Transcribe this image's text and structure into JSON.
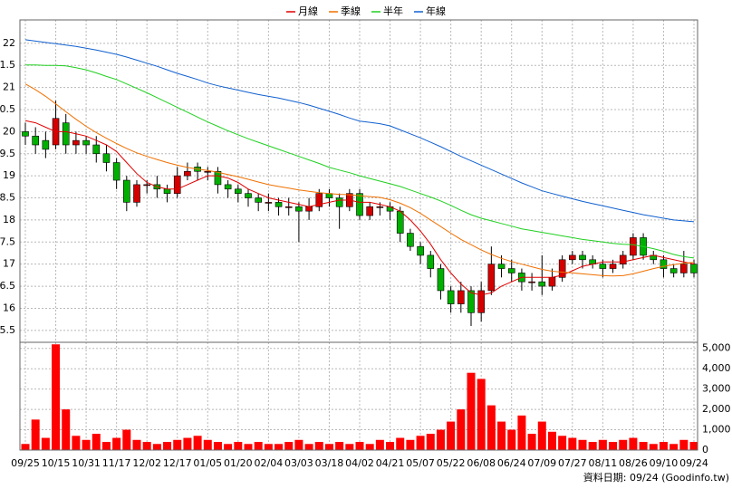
{
  "chart_data": {
    "type": "candlestick",
    "source": "資料日期: 09/24 (Goodinfo.tw)",
    "categories": [
      "09/25",
      null,
      null,
      "10/15",
      null,
      null,
      "10/31",
      null,
      null,
      "11/17",
      null,
      null,
      "12/02",
      null,
      null,
      "12/17",
      null,
      null,
      "01/05",
      null,
      null,
      "01/20",
      null,
      null,
      "02/04",
      null,
      null,
      "03/03",
      null,
      null,
      "03/18",
      null,
      null,
      "04/02",
      null,
      null,
      "04/21",
      null,
      null,
      "05/07",
      null,
      null,
      "05/22",
      null,
      null,
      "06/08",
      null,
      null,
      "06/24",
      null,
      null,
      "07/09",
      null,
      null,
      "07/27",
      null,
      null,
      "08/11",
      null,
      null,
      "08/26",
      null,
      null,
      "09/10",
      null,
      null,
      "09/24"
    ],
    "open": [
      20.0,
      19.9,
      19.8,
      19.7,
      20.2,
      19.7,
      19.8,
      19.7,
      19.5,
      19.3,
      18.9,
      18.4,
      18.8,
      18.8,
      18.7,
      18.6,
      19.0,
      19.2,
      19.1,
      19.1,
      18.8,
      18.7,
      18.6,
      18.5,
      18.4,
      18.4,
      18.3,
      18.3,
      18.2,
      18.3,
      18.6,
      18.5,
      18.3,
      18.6,
      18.1,
      18.3,
      18.3,
      18.2,
      17.7,
      17.4,
      17.2,
      16.9,
      16.4,
      16.1,
      16.4,
      15.9,
      16.4,
      17.0,
      16.9,
      16.8,
      16.6,
      16.6,
      16.5,
      16.7,
      17.1,
      17.2,
      17.1,
      17.0,
      16.9,
      17.0,
      17.2,
      17.6,
      17.2,
      17.1,
      16.9,
      16.8,
      17.0
    ],
    "high": [
      20.2,
      20.1,
      20.0,
      20.7,
      20.4,
      20.0,
      19.9,
      19.9,
      19.7,
      19.4,
      19.0,
      18.9,
      18.9,
      19.0,
      18.8,
      19.2,
      19.3,
      19.3,
      19.2,
      19.2,
      18.9,
      18.8,
      18.7,
      18.6,
      18.6,
      18.5,
      18.5,
      18.4,
      18.5,
      18.7,
      18.7,
      18.6,
      18.7,
      18.7,
      18.4,
      18.4,
      18.4,
      18.3,
      17.8,
      17.5,
      17.3,
      17.0,
      16.5,
      16.6,
      16.5,
      16.6,
      17.4,
      17.2,
      17.1,
      16.9,
      16.8,
      17.2,
      16.9,
      17.2,
      17.3,
      17.3,
      17.2,
      17.1,
      17.1,
      17.3,
      17.7,
      17.7,
      17.3,
      17.2,
      17.0,
      17.3,
      17.1
    ],
    "low": [
      19.7,
      19.5,
      19.4,
      19.6,
      19.5,
      19.5,
      19.5,
      19.3,
      19.1,
      18.7,
      18.2,
      18.3,
      18.6,
      18.5,
      18.4,
      18.5,
      18.9,
      18.9,
      18.9,
      18.6,
      18.5,
      18.4,
      18.3,
      18.2,
      18.2,
      18.1,
      18.1,
      17.5,
      18.0,
      18.2,
      18.3,
      17.8,
      18.2,
      18.0,
      18.0,
      18.1,
      18.0,
      17.5,
      17.3,
      17.0,
      16.7,
      16.2,
      15.9,
      15.9,
      15.6,
      15.7,
      16.3,
      16.7,
      16.6,
      16.4,
      16.4,
      16.3,
      16.4,
      16.6,
      17.0,
      16.9,
      16.9,
      16.7,
      16.8,
      16.9,
      17.1,
      17.1,
      17.0,
      16.7,
      16.7,
      16.7,
      16.7
    ],
    "close": [
      19.9,
      19.7,
      19.6,
      20.3,
      19.7,
      19.8,
      19.7,
      19.5,
      19.3,
      18.9,
      18.4,
      18.8,
      18.8,
      18.7,
      18.6,
      19.0,
      19.1,
      19.1,
      19.1,
      18.8,
      18.7,
      18.6,
      18.5,
      18.4,
      18.4,
      18.3,
      18.3,
      18.2,
      18.3,
      18.6,
      18.5,
      18.3,
      18.6,
      18.1,
      18.3,
      18.3,
      18.2,
      17.7,
      17.4,
      17.2,
      16.9,
      16.4,
      16.1,
      16.4,
      15.9,
      16.4,
      17.0,
      16.9,
      16.8,
      16.6,
      16.6,
      16.5,
      16.7,
      17.1,
      17.2,
      17.1,
      17.0,
      16.9,
      17.0,
      17.2,
      17.6,
      17.2,
      17.1,
      16.9,
      16.8,
      17.0,
      16.8
    ],
    "up_color": "#d40000",
    "down_color": "#00b000",
    "volume": {
      "color": "#ff0000",
      "values": [
        300,
        1500,
        600,
        5200,
        2000,
        700,
        500,
        800,
        400,
        600,
        1000,
        500,
        400,
        300,
        400,
        500,
        600,
        700,
        500,
        400,
        300,
        400,
        300,
        400,
        300,
        300,
        400,
        500,
        300,
        400,
        300,
        400,
        300,
        400,
        300,
        500,
        400,
        600,
        500,
        700,
        800,
        1000,
        1400,
        2000,
        3800,
        3500,
        2200,
        1400,
        1000,
        1700,
        800,
        1400,
        900,
        700,
        600,
        500,
        400,
        500,
        400,
        500,
        600,
        400,
        300,
        400,
        300,
        500,
        400
      ]
    },
    "series": [
      {
        "name": "月線",
        "color": "#e00000",
        "values": [
          20.25,
          20.2,
          20.1,
          20.0,
          20.0,
          19.95,
          19.9,
          19.8,
          19.7,
          19.55,
          19.3,
          19.05,
          18.85,
          18.75,
          18.7,
          18.7,
          18.8,
          18.9,
          19.0,
          19.0,
          18.95,
          18.85,
          18.7,
          18.6,
          18.5,
          18.45,
          18.4,
          18.35,
          18.3,
          18.35,
          18.4,
          18.45,
          18.45,
          18.4,
          18.4,
          18.35,
          18.3,
          18.2,
          18.0,
          17.75,
          17.45,
          17.1,
          16.8,
          16.55,
          16.35,
          16.3,
          16.35,
          16.5,
          16.6,
          16.7,
          16.7,
          16.7,
          16.7,
          16.75,
          16.85,
          16.95,
          17.0,
          17.05,
          17.05,
          17.05,
          17.1,
          17.15,
          17.2,
          17.15,
          17.1,
          17.05,
          17.0
        ]
      },
      {
        "name": "季線",
        "color": "#f07000",
        "values": [
          21.08,
          20.95,
          20.8,
          20.63,
          20.45,
          20.28,
          20.12,
          19.98,
          19.85,
          19.73,
          19.62,
          19.52,
          19.44,
          19.37,
          19.3,
          19.24,
          19.19,
          19.15,
          19.12,
          19.08,
          19.03,
          18.98,
          18.92,
          18.86,
          18.8,
          18.76,
          18.72,
          18.68,
          18.65,
          18.62,
          18.6,
          18.58,
          18.57,
          18.55,
          18.53,
          18.51,
          18.46,
          18.38,
          18.28,
          18.15,
          18.0,
          17.85,
          17.7,
          17.56,
          17.44,
          17.32,
          17.22,
          17.13,
          17.06,
          17.0,
          16.94,
          16.88,
          16.84,
          16.82,
          16.8,
          16.78,
          16.76,
          16.74,
          16.73,
          16.74,
          16.78,
          16.84,
          16.9,
          16.95,
          16.99,
          17.02,
          17.04
        ]
      },
      {
        "name": "半年",
        "color": "#20d020",
        "values": [
          21.51,
          21.51,
          21.5,
          21.5,
          21.49,
          21.45,
          21.4,
          21.33,
          21.25,
          21.18,
          21.08,
          20.98,
          20.88,
          20.77,
          20.66,
          20.55,
          20.44,
          20.33,
          20.22,
          20.12,
          20.02,
          19.93,
          19.84,
          19.76,
          19.68,
          19.6,
          19.52,
          19.44,
          19.36,
          19.28,
          19.19,
          19.13,
          19.07,
          19.0,
          18.94,
          18.88,
          18.82,
          18.76,
          18.68,
          18.6,
          18.52,
          18.43,
          18.33,
          18.22,
          18.12,
          18.04,
          17.98,
          17.92,
          17.86,
          17.8,
          17.76,
          17.72,
          17.68,
          17.64,
          17.6,
          17.56,
          17.53,
          17.5,
          17.47,
          17.45,
          17.44,
          17.4,
          17.35,
          17.29,
          17.22,
          17.17,
          17.14
        ]
      },
      {
        "name": "年線",
        "color": "#1060d0",
        "values": [
          22.08,
          22.05,
          22.02,
          21.99,
          21.96,
          21.93,
          21.89,
          21.85,
          21.8,
          21.75,
          21.69,
          21.62,
          21.55,
          21.48,
          21.4,
          21.32,
          21.25,
          21.18,
          21.1,
          21.04,
          20.99,
          20.94,
          20.89,
          20.84,
          20.8,
          20.76,
          20.71,
          20.66,
          20.6,
          20.53,
          20.46,
          20.39,
          20.31,
          20.24,
          20.21,
          20.18,
          20.13,
          20.04,
          19.95,
          19.86,
          19.76,
          19.66,
          19.55,
          19.44,
          19.34,
          19.24,
          19.14,
          19.04,
          18.94,
          18.84,
          18.75,
          18.66,
          18.6,
          18.54,
          18.48,
          18.42,
          18.37,
          18.32,
          18.27,
          18.22,
          18.17,
          18.12,
          18.08,
          18.04,
          18.0,
          17.98,
          17.96
        ]
      }
    ],
    "ylim": [
      15.23,
      22.53
    ],
    "yticks": [
      22,
      {
        "value": 21.5,
        "label": "1.5"
      },
      21,
      {
        "value": 20.5,
        "label": "0.5"
      },
      20,
      {
        "value": 19.5,
        "label": "9.5"
      },
      19,
      {
        "value": 18.5,
        "label": "8.5"
      },
      18,
      {
        "value": 17.5,
        "label": "7.5"
      },
      17,
      {
        "value": 16.5,
        "label": "6.5"
      },
      16,
      {
        "value": 15.5,
        "label": "5.5"
      }
    ],
    "y2lim": [
      0,
      5300
    ],
    "y2ticks": [
      {
        "value": 5000,
        "label": "5,000"
      },
      {
        "value": 4000,
        "label": "4,000"
      },
      {
        "value": 3000,
        "label": "3,000"
      },
      {
        "value": 2000,
        "label": "2,000"
      },
      {
        "value": 1000,
        "label": "1,000"
      },
      0
    ],
    "grid": true,
    "legend": "top"
  }
}
